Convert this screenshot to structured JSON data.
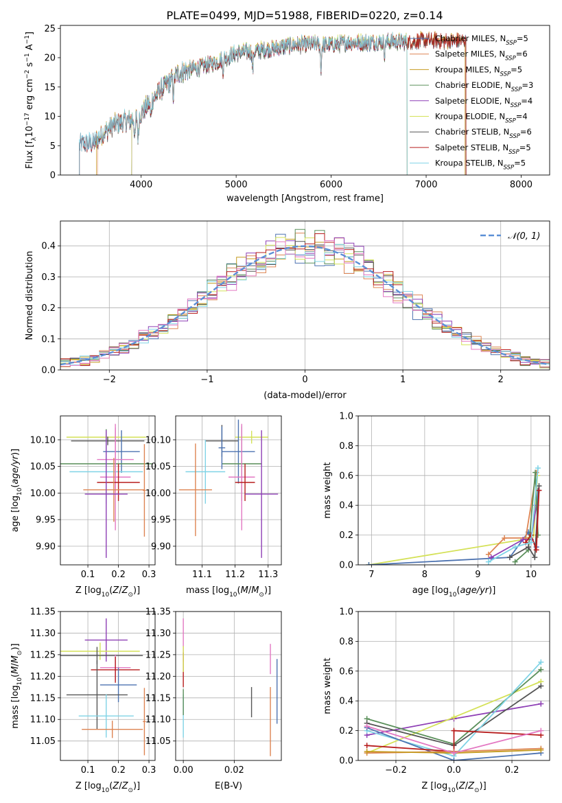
{
  "figure": {
    "title": "PLATE=0499, MJD=51988, FIBERID=0220, z=0.14"
  },
  "chart_data": [
    {
      "panel": "spectrum",
      "type": "line",
      "xlabel": "wavelength [Angstrom, rest frame]",
      "ylabel": "Flux [f_λ10⁻¹⁷ erg cm⁻² s⁻¹ A⁻¹]",
      "xlim": [
        3150,
        8300
      ],
      "ylim": [
        0,
        25.5
      ],
      "xticks": [
        4000,
        5000,
        6000,
        7000,
        8000
      ],
      "yticks": [
        0,
        5,
        10,
        15,
        20,
        25
      ],
      "grid": false,
      "legend_position": "top-right",
      "continuum": {
        "x": [
          3350,
          3500,
          3700,
          3900,
          4000,
          4200,
          4400,
          4600,
          4800,
          5000,
          5200,
          5400,
          5600,
          5800,
          6000,
          6200,
          6400,
          6600,
          6800,
          7000,
          7200,
          7400
        ],
        "y": [
          5.3,
          5.5,
          8.5,
          9.5,
          10.5,
          14.5,
          17.5,
          18.3,
          19.3,
          20.8,
          21.2,
          21.6,
          22.2,
          22.3,
          22.2,
          22.6,
          22.6,
          22.8,
          22.7,
          23.0,
          22.8,
          22.9
        ]
      },
      "noise_amplitude": 1.5,
      "absorption_features": [
        {
          "x": 3934,
          "depth": 4.0
        },
        {
          "x": 3969,
          "depth": 4.0
        },
        {
          "x": 4102,
          "depth": 3.0
        },
        {
          "x": 4340,
          "depth": 3.0
        },
        {
          "x": 5175,
          "depth": 3.5
        },
        {
          "x": 5893,
          "depth": 4.0
        },
        {
          "x": 6563,
          "depth": 2.0
        },
        {
          "x": 4861,
          "depth": 2.0
        }
      ],
      "series": [
        {
          "name": "Chabrier MILES, N_SSP=5",
          "color": "#4c72b0",
          "xmin": 3350,
          "xmax": 7420
        },
        {
          "name": "Salpeter MILES, N_SSP=6",
          "color": "#dd8452",
          "xmin": 3540,
          "xmax": 7410
        },
        {
          "name": "Kroupa MILES, N_SSP=5",
          "color": "#c49a1e",
          "xmin": 3530,
          "xmax": 7410
        },
        {
          "name": "Chabrier ELODIE, N_SSP=3",
          "color": "#5a8f5a",
          "xmin": 3900,
          "xmax": 6800
        },
        {
          "name": "Salpeter ELODIE, N_SSP=4",
          "color": "#8e3fb5",
          "xmin": 3900,
          "xmax": 6800
        },
        {
          "name": "Kroupa ELODIE, N_SSP=4",
          "color": "#d4e157",
          "xmin": 3900,
          "xmax": 6800
        },
        {
          "name": "Chabrier STELIB, N_SSP=6",
          "color": "#555555",
          "xmin": 3350,
          "xmax": 7420
        },
        {
          "name": "Salpeter STELIB, N_SSP=5",
          "color": "#b71c1c",
          "xmin": 3350,
          "xmax": 7420
        },
        {
          "name": "Kroupa STELIB, N_SSP=5",
          "color": "#7fd3e6",
          "xmin": 3350,
          "xmax": 6800
        }
      ],
      "legend_labels": [
        {
          "base": "Chabrier MILES, N",
          "sub": "SSP",
          "tail": "=5"
        },
        {
          "base": "Salpeter MILES, N",
          "sub": "SSP",
          "tail": "=6"
        },
        {
          "base": "Kroupa MILES, N",
          "sub": "SSP",
          "tail": "=5"
        },
        {
          "base": "Chabrier ELODIE, N",
          "sub": "SSP",
          "tail": "=3"
        },
        {
          "base": "Salpeter ELODIE, N",
          "sub": "SSP",
          "tail": "=4"
        },
        {
          "base": "Kroupa ELODIE, N",
          "sub": "SSP",
          "tail": "=4"
        },
        {
          "base": "Chabrier STELIB, N",
          "sub": "SSP",
          "tail": "=6"
        },
        {
          "base": "Salpeter STELIB, N",
          "sub": "SSP",
          "tail": "=5"
        },
        {
          "base": "Kroupa STELIB, N",
          "sub": "SSP",
          "tail": "=5"
        }
      ]
    },
    {
      "panel": "residuals",
      "type": "histogram",
      "xlabel": "(data-model)/error",
      "ylabel": "Normed distribution",
      "xlim": [
        -2.5,
        2.5
      ],
      "ylim": [
        0,
        0.48
      ],
      "xticks": [
        -2,
        -1,
        0,
        1,
        2
      ],
      "yticks": [
        0.0,
        0.1,
        0.2,
        0.3,
        0.4
      ],
      "bin_width": 0.1,
      "grid": true,
      "legend_position": "top-right",
      "reference_curve": {
        "name": "𝒩(0, 1)",
        "color": "#5b8fd6",
        "mean": 0.0,
        "sigma": 1.0
      },
      "series_colors": [
        "#4c72b0",
        "#dd8452",
        "#c49a1e",
        "#5a8f5a",
        "#8e3fb5",
        "#d4e157",
        "#555555",
        "#b71c1c",
        "#7fd3e6",
        "#e377c2"
      ]
    },
    {
      "panel": "age_vs_Z",
      "type": "errorbar",
      "xlabel": "Z [log10(Z/Z⊙)]",
      "ylabel": "age  [log10(age/yr)]",
      "xlim": [
        0.01,
        0.32
      ],
      "ylim": [
        9.865,
        10.145
      ],
      "xticks": [
        0.1,
        0.2,
        0.3
      ],
      "yticks": [
        9.9,
        9.95,
        10.0,
        10.05,
        10.1
      ],
      "grid": true,
      "points": [
        {
          "x": 0.16,
          "xerr": 0.13,
          "y": 10.105,
          "yerr": 0.012,
          "color": "#d4e157"
        },
        {
          "x": 0.165,
          "xerr": 0.12,
          "y": 10.098,
          "yerr": 0.008,
          "color": "#555555"
        },
        {
          "x": 0.21,
          "xerr": 0.06,
          "y": 10.078,
          "yerr": 0.04,
          "color": "#4c72b0"
        },
        {
          "x": 0.19,
          "xerr": 0.06,
          "y": 10.063,
          "yerr": 0.06,
          "color": "#e377c2"
        },
        {
          "x": 0.16,
          "xerr": 0.15,
          "y": 10.055,
          "yerr": 0.065,
          "color": "#5a8f5a"
        },
        {
          "x": 0.16,
          "xerr": 0.12,
          "y": 10.04,
          "yerr": 0.06,
          "color": "#7fd3e6"
        },
        {
          "x": 0.19,
          "xerr": 0.05,
          "y": 10.03,
          "yerr": 0.1,
          "color": "#e377c2"
        },
        {
          "x": 0.2,
          "xerr": 0.07,
          "y": 10.02,
          "yerr": 0.035,
          "color": "#b71c1c"
        },
        {
          "x": 0.185,
          "xerr": 0.1,
          "y": 10.006,
          "yerr": 0.06,
          "color": "#dd8452"
        },
        {
          "x": 0.16,
          "xerr": 0.07,
          "y": 9.998,
          "yerr": 0.12,
          "color": "#8e3fb5"
        },
        {
          "x": 0.285,
          "xerr": 0.005,
          "y": 10.005,
          "yerr": 0.087,
          "color": "#dd8452"
        }
      ]
    },
    {
      "panel": "age_vs_mass",
      "type": "errorbar",
      "xlabel": "mass [log10(M/M⊙)]",
      "ylabel": "",
      "xlim": [
        11.02,
        11.34
      ],
      "ylim": [
        9.865,
        10.145
      ],
      "xticks": [
        11.1,
        11.2,
        11.3
      ],
      "yticks": [
        9.9,
        9.95,
        10.0,
        10.05,
        10.1
      ],
      "grid": true,
      "points": [
        {
          "x": 11.25,
          "xerr": 0.05,
          "y": 10.105,
          "yerr": 0.012,
          "color": "#d4e157"
        },
        {
          "x": 11.16,
          "xerr": 0.05,
          "y": 10.098,
          "yerr": 0.03,
          "color": "#555555"
        },
        {
          "x": 11.21,
          "xerr": 0.05,
          "y": 10.078,
          "yerr": 0.06,
          "color": "#4c72b0"
        },
        {
          "x": 11.22,
          "xerr": 0.06,
          "y": 10.055,
          "yerr": 0.07,
          "color": "#5a8f5a"
        },
        {
          "x": 11.11,
          "xerr": 0.06,
          "y": 10.04,
          "yerr": 0.06,
          "color": "#7fd3e6"
        },
        {
          "x": 11.22,
          "xerr": 0.04,
          "y": 10.03,
          "yerr": 0.1,
          "color": "#e377c2"
        },
        {
          "x": 11.23,
          "xerr": 0.03,
          "y": 10.02,
          "yerr": 0.035,
          "color": "#b71c1c"
        },
        {
          "x": 11.08,
          "xerr": 0.05,
          "y": 10.006,
          "yerr": 0.087,
          "color": "#dd8452"
        },
        {
          "x": 11.28,
          "xerr": 0.05,
          "y": 9.998,
          "yerr": 0.12,
          "color": "#8e3fb5"
        },
        {
          "x": 11.16,
          "xerr": 0.01,
          "y": 10.085,
          "yerr": 0.04,
          "color": "#4c72b0"
        }
      ]
    },
    {
      "panel": "weight_vs_age",
      "type": "line",
      "xlabel": "age  [log10(age/yr)]",
      "ylabel": "mass weight",
      "xlim": [
        6.75,
        10.35
      ],
      "ylim": [
        0,
        1.0
      ],
      "xticks": [
        7,
        8,
        9,
        10
      ],
      "yticks": [
        0.0,
        0.2,
        0.4,
        0.6,
        0.8,
        1.0
      ],
      "grid": true,
      "series": [
        {
          "color": "#d4e157",
          "x": [
            6.95,
            9.85,
            10.05,
            10.12
          ],
          "y": [
            0.0,
            0.17,
            0.2,
            0.6
          ]
        },
        {
          "color": "#4c72b0",
          "x": [
            6.95,
            9.6,
            9.95,
            10.1,
            10.13
          ],
          "y": [
            0.0,
            0.05,
            0.22,
            0.12,
            0.5
          ]
        },
        {
          "color": "#dd8452",
          "x": [
            9.2,
            9.5,
            9.9,
            10.1
          ],
          "y": [
            0.07,
            0.18,
            0.18,
            0.62
          ]
        },
        {
          "color": "#8e3fb5",
          "x": [
            9.25,
            9.85,
            10.0,
            10.1
          ],
          "y": [
            0.05,
            0.17,
            0.17,
            0.4
          ]
        },
        {
          "color": "#5a8f5a",
          "x": [
            9.7,
            9.95,
            10.08,
            10.13
          ],
          "y": [
            0.02,
            0.1,
            0.62,
            0.2
          ]
        },
        {
          "color": "#555555",
          "x": [
            9.6,
            9.95,
            10.07,
            10.15
          ],
          "y": [
            0.05,
            0.12,
            0.05,
            0.53
          ]
        },
        {
          "color": "#b71c1c",
          "x": [
            9.9,
            10.0,
            10.1,
            10.15
          ],
          "y": [
            0.15,
            0.2,
            0.1,
            0.5
          ]
        },
        {
          "color": "#7fd3e6",
          "x": [
            9.2,
            9.7,
            10.0,
            10.13
          ],
          "y": [
            0.02,
            0.12,
            0.15,
            0.65
          ]
        }
      ]
    },
    {
      "panel": "mass_vs_Z",
      "type": "errorbar",
      "xlabel": "Z [log10(Z/Z⊙)]",
      "ylabel": "mass [log10(M/M⊙)]",
      "xlim": [
        0.01,
        0.32
      ],
      "ylim": [
        11.005,
        11.35
      ],
      "xticks": [
        0.1,
        0.2,
        0.3
      ],
      "yticks": [
        11.05,
        11.1,
        11.15,
        11.2,
        11.25,
        11.3,
        11.35
      ],
      "grid": true,
      "points": [
        {
          "x": 0.16,
          "xerr": 0.07,
          "y": 11.284,
          "yerr": 0.05,
          "color": "#8e3fb5"
        },
        {
          "x": 0.14,
          "xerr": 0.13,
          "y": 11.258,
          "yerr": 0.02,
          "color": "#d4e157"
        },
        {
          "x": 0.13,
          "xerr": 0.15,
          "y": 11.248,
          "yerr": 0.02,
          "color": "#555555"
        },
        {
          "x": 0.19,
          "xerr": 0.05,
          "y": 11.22,
          "yerr": 0.03,
          "color": "#e377c2"
        },
        {
          "x": 0.19,
          "xerr": 0.08,
          "y": 11.215,
          "yerr": 0.03,
          "color": "#b71c1c"
        },
        {
          "x": 0.2,
          "xerr": 0.06,
          "y": 11.18,
          "yerr": 0.04,
          "color": "#4c72b0"
        },
        {
          "x": 0.13,
          "xerr": 0.1,
          "y": 11.157,
          "yerr": 0.08,
          "color": "#555555"
        },
        {
          "x": 0.16,
          "xerr": 0.09,
          "y": 11.108,
          "yerr": 0.05,
          "color": "#7fd3e6"
        },
        {
          "x": 0.18,
          "xerr": 0.1,
          "y": 11.077,
          "yerr": 0.02,
          "color": "#dd8452"
        },
        {
          "x": 0.285,
          "xerr": 0.005,
          "y": 11.095,
          "yerr": 0.078,
          "color": "#dd8452"
        }
      ]
    },
    {
      "panel": "mass_vs_EBV",
      "type": "errorbar",
      "xlabel": "E(B-V)",
      "ylabel": "",
      "xlim": [
        -0.003,
        0.0385
      ],
      "ylim": [
        11.005,
        11.35
      ],
      "xticks": [
        0.0,
        0.02
      ],
      "yticks": [
        11.05,
        11.1,
        11.15,
        11.2,
        11.25,
        11.3,
        11.35
      ],
      "grid": true,
      "points": [
        {
          "x": 0.0,
          "yerr": 0.05,
          "y": 11.284,
          "color": "#e377c2"
        },
        {
          "x": 0.0,
          "yerr": 0.04,
          "y": 11.215,
          "color": "#b71c1c"
        },
        {
          "x": 0.0,
          "yerr": 0.03,
          "y": 11.24,
          "color": "#d4e157"
        },
        {
          "x": 0.0,
          "yerr": 0.05,
          "y": 11.108,
          "color": "#7fd3e6"
        },
        {
          "x": 0.0,
          "yerr": 0.03,
          "y": 11.14,
          "color": "#5a8f5a"
        },
        {
          "x": 0.0268,
          "yerr": 0.035,
          "y": 11.14,
          "color": "#555555"
        },
        {
          "x": 0.0342,
          "yerr": 0.08,
          "y": 11.095,
          "color": "#dd8452"
        },
        {
          "x": 0.0342,
          "yerr": 0.035,
          "y": 11.24,
          "color": "#e377c2"
        },
        {
          "x": 0.0368,
          "yerr": 0.075,
          "y": 11.165,
          "color": "#4c72b0"
        }
      ]
    },
    {
      "panel": "weight_vs_Z",
      "type": "line",
      "xlabel": "Z [log10(Z/Z⊙)]",
      "ylabel": "mass weight",
      "xlim": [
        -0.33,
        0.33
      ],
      "ylim": [
        0,
        1.0
      ],
      "xticks": [
        -0.2,
        0.0,
        0.2
      ],
      "yticks": [
        0.0,
        0.2,
        0.4,
        0.6,
        0.8,
        1.0
      ],
      "grid": true,
      "series": [
        {
          "color": "#8e3fb5",
          "x": [
            -0.3,
            0.0,
            0.3
          ],
          "y": [
            0.17,
            0.28,
            0.38
          ]
        },
        {
          "color": "#d4e157",
          "x": [
            -0.3,
            0.0,
            0.3
          ],
          "y": [
            0.05,
            0.29,
            0.53
          ]
        },
        {
          "color": "#5a8f5a",
          "x": [
            -0.3,
            0.0,
            0.3
          ],
          "y": [
            0.28,
            0.11,
            0.61
          ]
        },
        {
          "color": "#555555",
          "x": [
            -0.3,
            0.0,
            0.3
          ],
          "y": [
            0.25,
            0.1,
            0.5
          ]
        },
        {
          "color": "#7fd3e6",
          "x": [
            -0.3,
            0.0,
            0.3
          ],
          "y": [
            0.2,
            0.03,
            0.66
          ]
        },
        {
          "color": "#4c72b0",
          "x": [
            -0.3,
            0.0,
            0.3
          ],
          "y": [
            0.22,
            0.0,
            0.05
          ]
        },
        {
          "color": "#b71c1c",
          "x": [
            -0.3,
            0.0,
            0.0,
            0.3
          ],
          "y": [
            0.1,
            0.06,
            0.2,
            0.17
          ]
        },
        {
          "color": "#dd8452",
          "x": [
            -0.3,
            0.0,
            0.3
          ],
          "y": [
            0.05,
            0.06,
            0.08
          ]
        },
        {
          "color": "#c49a1e",
          "x": [
            -0.3,
            0.0,
            0.3
          ],
          "y": [
            0.06,
            0.05,
            0.07
          ]
        },
        {
          "color": "#e377c2",
          "x": [
            -0.3,
            0.0,
            0.3
          ],
          "y": [
            0.23,
            0.05,
            0.2
          ]
        }
      ]
    }
  ]
}
